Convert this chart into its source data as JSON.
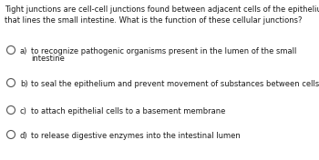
{
  "background_color": "#ffffff",
  "text_color": "#1a1a1a",
  "question_text": "Tight junctions are cell-cell junctions found between adjacent cells of the epithelium\nthat lines the small intestine. What is the function of these cellular junctions?",
  "options": [
    {
      "label": "a)",
      "line1": "to recognize pathogenic organisms present in the lumen of the small",
      "line2": "intestine"
    },
    {
      "label": "b)",
      "line1": "to seal the epithelium and prevent movement of substances between cells",
      "line2": null
    },
    {
      "label": "c)",
      "line1": "to attach epithelial cells to a basement membrane",
      "line2": null
    },
    {
      "label": "d)",
      "line1": "to release digestive enzymes into the intestinal lumen",
      "line2": null
    }
  ],
  "question_fontsize": 6.0,
  "option_fontsize": 6.0,
  "figsize": [
    3.5,
    1.76
  ],
  "dpi": 100
}
